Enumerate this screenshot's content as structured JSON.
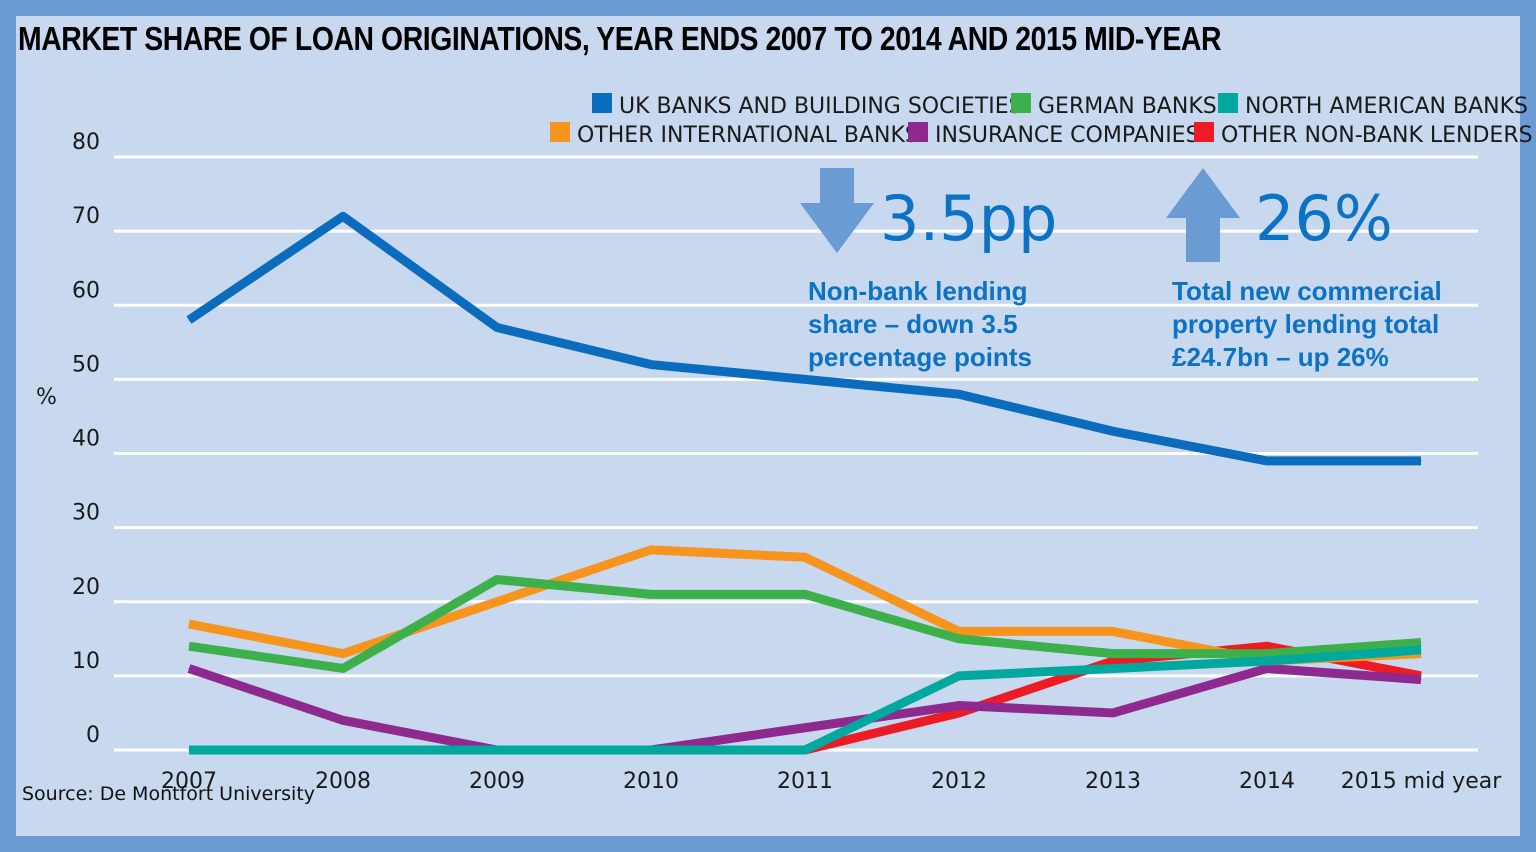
{
  "title": "MARKET SHARE OF LOAN ORIGINATIONS, YEAR ENDS 2007 TO 2014 AND 2015 MID-YEAR",
  "source": "Source: De Montfort University",
  "callouts": [
    {
      "arrow": "down",
      "value": "3.5pp",
      "lines": [
        "Non-bank lending",
        "share – down 3.5",
        "percentage points"
      ]
    },
    {
      "arrow": "up",
      "value": "26%",
      "lines": [
        "Total new commercial",
        "property lending total",
        "£24.7bn – up 26%"
      ]
    }
  ],
  "colors": {
    "arrow": "#6a9bd3",
    "callout_text": "#0b72c4",
    "grid": "#ffffff",
    "frame": "#6a9bd3",
    "background": "#c8d8ef"
  },
  "chart_data": {
    "type": "line",
    "ylabel": "%",
    "xlabel": "",
    "ylim": [
      0,
      80
    ],
    "yticks": [
      0,
      10,
      20,
      30,
      40,
      50,
      60,
      70,
      80
    ],
    "categories": [
      "2007",
      "2008",
      "2009",
      "2010",
      "2011",
      "2012",
      "2013",
      "2014",
      "2015 mid year"
    ],
    "grid": true,
    "legend_position": "top-right",
    "series": [
      {
        "name": "UK BANKS AND BUILDING SOCIETIES",
        "color": "#0b6cbd",
        "values": [
          58,
          72,
          57,
          52,
          50,
          48,
          43,
          39,
          39
        ]
      },
      {
        "name": "GERMAN BANKS",
        "color": "#3db04b",
        "values": [
          14,
          11,
          23,
          21,
          21,
          15,
          13,
          13,
          14.5
        ]
      },
      {
        "name": "NORTH AMERICAN BANKS",
        "color": "#00a89d",
        "values": [
          0,
          0,
          0,
          0,
          0,
          10,
          11,
          12,
          13.5
        ]
      },
      {
        "name": "OTHER INTERNATIONAL BANKS",
        "color": "#f7941d",
        "values": [
          17,
          13,
          20,
          27,
          26,
          16,
          16,
          12,
          13
        ]
      },
      {
        "name": "INSURANCE COMPANIES",
        "color": "#8e2a8f",
        "values": [
          11,
          4,
          0,
          0,
          3,
          6,
          5,
          11,
          9.5
        ]
      },
      {
        "name": "OTHER NON-BANK LENDERS",
        "color": "#ed1c24",
        "values": [
          null,
          null,
          null,
          null,
          0,
          5,
          12,
          14,
          10
        ]
      }
    ]
  }
}
